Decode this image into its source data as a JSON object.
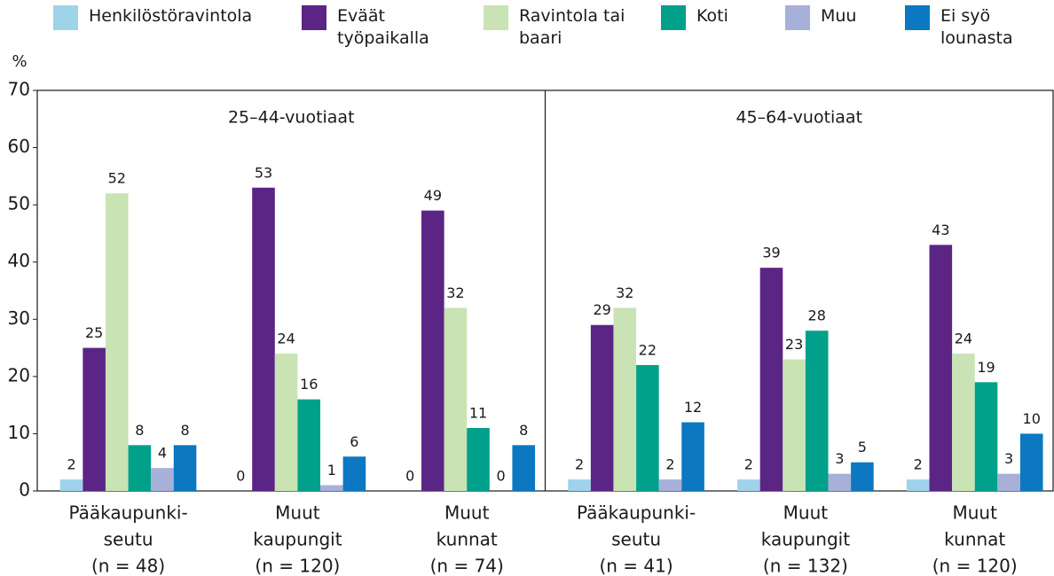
{
  "chart_data": {
    "type": "bar",
    "ylabel": "%",
    "groups": [
      "25–44-vuotiaat",
      "45–64-vuotiaat"
    ],
    "categories": [
      [
        "Pääkaupunki-",
        "seutu",
        "(n = 48)"
      ],
      [
        "Muut",
        "kaupungit",
        "(n = 120)"
      ],
      [
        "Muut",
        "kunnat",
        "(n = 74)"
      ],
      [
        "Pääkaupunki-",
        "seutu",
        "(n = 41)"
      ],
      [
        "Muut",
        "kaupungit",
        "(n = 132)"
      ],
      [
        "Muut",
        "kunnat",
        "(n = 120)"
      ]
    ],
    "series": [
      {
        "name": "Henkilöstöravintola",
        "color": "#9fd3ea",
        "values": [
          2,
          0,
          0,
          2,
          2,
          2
        ]
      },
      {
        "name": "Eväät työpaikalla",
        "color": "#5b2585",
        "values": [
          25,
          53,
          49,
          29,
          39,
          43
        ]
      },
      {
        "name": "Ravintola tai baari",
        "color": "#c9e3b5",
        "values": [
          52,
          24,
          32,
          32,
          23,
          24
        ]
      },
      {
        "name": "Koti",
        "color": "#00a08a",
        "values": [
          8,
          16,
          11,
          22,
          28,
          19
        ]
      },
      {
        "name": "Muu",
        "color": "#a6b0d8",
        "values": [
          4,
          1,
          0,
          2,
          3,
          3
        ]
      },
      {
        "name": "Ei syö lounasta",
        "color": "#0b78c1",
        "values": [
          8,
          6,
          8,
          12,
          5,
          10
        ]
      }
    ],
    "ylim": [
      0,
      70
    ],
    "yticks": [
      0,
      10,
      20,
      30,
      40,
      50,
      60,
      70
    ]
  }
}
